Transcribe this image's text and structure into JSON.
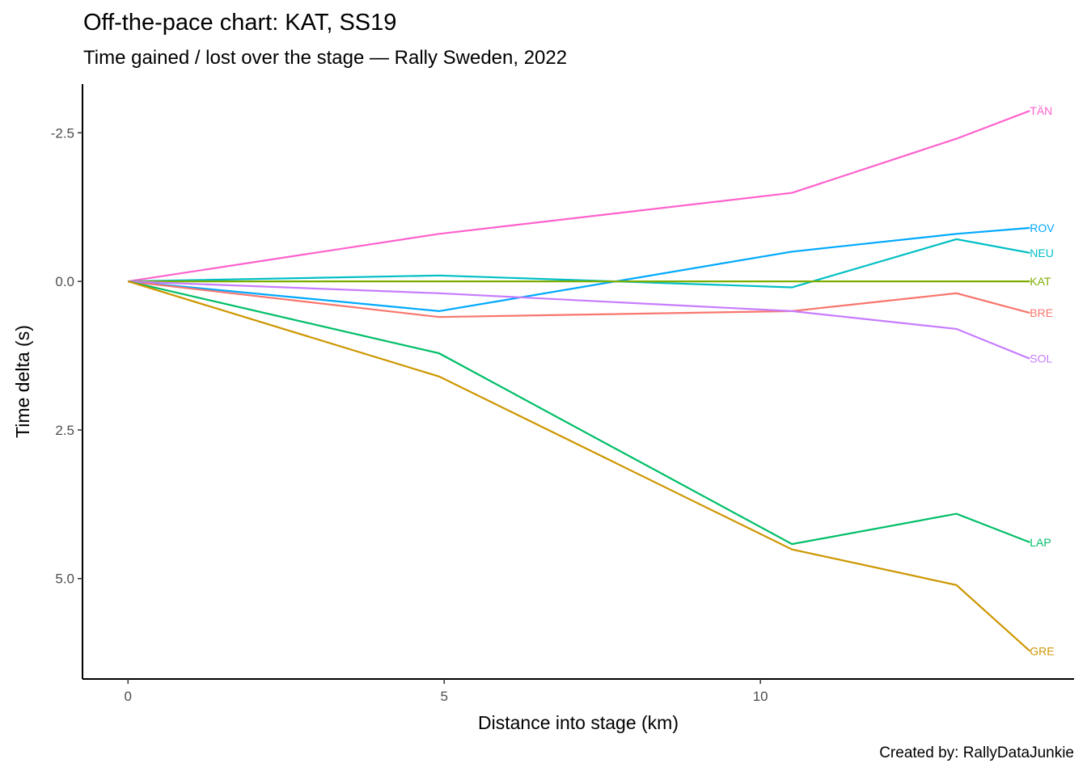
{
  "chart_data": {
    "type": "line",
    "title": "Off-the-pace chart: KAT, SS19",
    "subtitle": "Time gained / lost over the stage — Rally Sweden, 2022",
    "caption": "Created by: RallyDataJunkie",
    "xlabel": "Distance into stage (km)",
    "ylabel": "Time delta (s)",
    "xlim": [
      -0.72,
      14.96
    ],
    "ylim": [
      -3.32,
      6.69
    ],
    "y_reversed": true,
    "grid": false,
    "legend": "direct labels at line ends",
    "x_ticks": [
      {
        "value": 0,
        "label": "0"
      },
      {
        "value": 5,
        "label": "5"
      },
      {
        "value": 10,
        "label": "10"
      }
    ],
    "y_ticks": [
      {
        "value": -2.5,
        "label": "-2.5"
      },
      {
        "value": 0,
        "label": "0.0"
      },
      {
        "value": 2.5,
        "label": "2.5"
      },
      {
        "value": 5,
        "label": "5.0"
      }
    ],
    "x": [
      0,
      4.92,
      10.5,
      13.1,
      14.26
    ],
    "series": [
      {
        "name": "TÄN",
        "color": "#FF61CC",
        "values": [
          0,
          -0.8,
          -1.49,
          -2.4,
          -2.87
        ]
      },
      {
        "name": "ROV",
        "color": "#00A9FF",
        "values": [
          0,
          0.5,
          -0.5,
          -0.8,
          -0.9
        ]
      },
      {
        "name": "NEU",
        "color": "#00BFC4",
        "values": [
          0,
          -0.1,
          0.1,
          -0.71,
          -0.48
        ]
      },
      {
        "name": "KAT",
        "color": "#7CAE00",
        "values": [
          0,
          0,
          0,
          0,
          0
        ]
      },
      {
        "name": "BRE",
        "color": "#F8766D",
        "values": [
          0,
          0.6,
          0.5,
          0.2,
          0.53
        ]
      },
      {
        "name": "SOL",
        "color": "#C77CFF",
        "values": [
          0,
          0.2,
          0.5,
          0.8,
          1.3
        ]
      },
      {
        "name": "LAP",
        "color": "#00BE67",
        "values": [
          0,
          1.21,
          4.42,
          3.91,
          4.39
        ]
      },
      {
        "name": "GRE",
        "color": "#CD9600",
        "values": [
          0,
          1.6,
          4.51,
          5.11,
          6.22
        ]
      }
    ]
  }
}
